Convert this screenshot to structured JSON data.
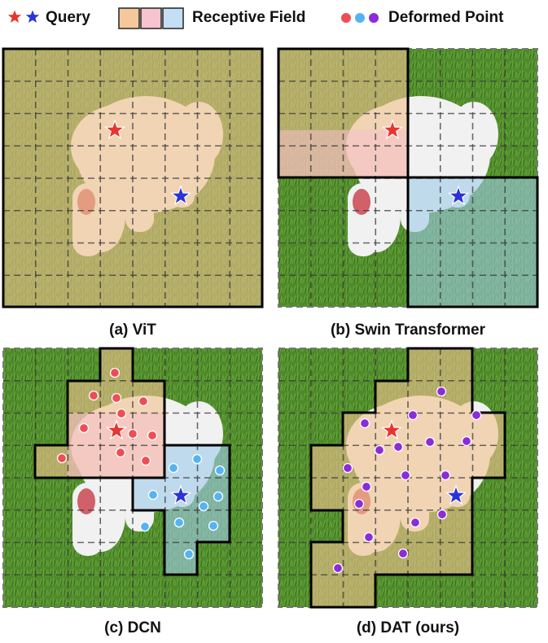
{
  "legend": {
    "query": "Query",
    "receptive_field": "Receptive Field",
    "deformed_point": "Deformed Point"
  },
  "panels": [
    {
      "id": "vit",
      "caption": "(a) ViT"
    },
    {
      "id": "swin",
      "caption": "(b) Swin Transformer"
    },
    {
      "id": "dcn",
      "caption": "(c) DCN"
    },
    {
      "id": "dat",
      "caption": "(d) DAT (ours)"
    }
  ],
  "colors": {
    "query_red": "#e8352f",
    "query_blue": "#2a32d8",
    "field_orange": "#f2c08f",
    "field_pink": "#f3b9c6",
    "field_blue": "#bcd9f2",
    "point_red": "#ef4d55",
    "point_blue": "#55b3f5",
    "point_purple": "#8c2cd9",
    "grass": "#4f8a2c",
    "dog": "#efefef"
  }
}
